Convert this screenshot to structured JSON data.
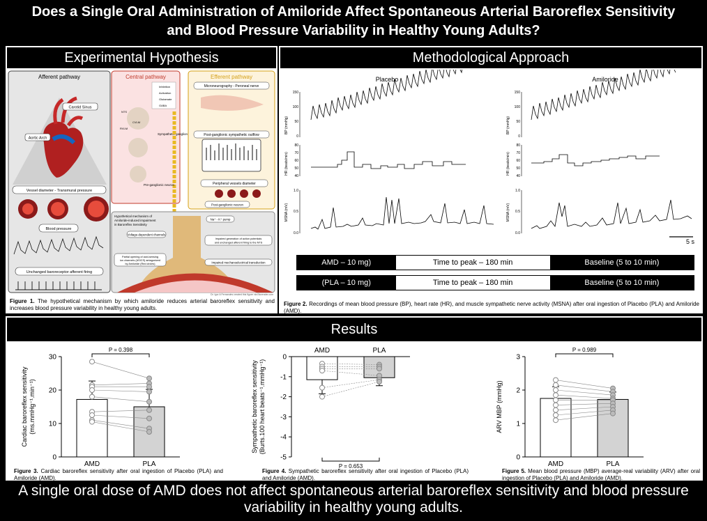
{
  "title": {
    "line1": "Does a Single Oral Administration of Amiloride Affect Spontaneous Arterial Baroreflex Sensitivity",
    "line2": "and Blood Pressure Variability in Healthy Young Adults?"
  },
  "hypothesis": {
    "header": "Experimental Hypothesis",
    "afferent_title": "Afferent pathway",
    "central_title": "Central pathway",
    "efferent_title": "Efferent pathway",
    "carotid_sinus": "Carotid Sinus",
    "aortic_arch": "Aortic Arch",
    "vessel_diameter": "Vessel diameter - Transmural pressure",
    "blood_pressure": "Blood pressure",
    "unchanged_firing": "Unchanged baroreceptor afferent firing",
    "legend": [
      "Inhibition",
      "Activation",
      "Glutamate",
      "GABA"
    ],
    "nts": "NTS",
    "cvlm": "CVLM",
    "rvlm": "RVLM",
    "sympathetic_ganglion": "Sympathetic ganglion",
    "preganglionic": "Pre-ganglionic neuron",
    "microneurography": "Microneurography - Peroneal nerve",
    "postganglionic_outflow": "Post-ganglionic sympathetic outflow",
    "peripheral_vessels": "Peripheral vessels diameter",
    "postganglionic_neuron": "Post-ganglionic neuron",
    "mechanism_title": "Hypothetical mechanism of Amiloride-induced impairment in Baroreflex Sensitivity",
    "voltage_channels": "Voltage-dependent channels",
    "pump": "Na⁺ - K⁺ pump",
    "partial_opening": "Partial opening of acid-sensing ion channels (ASICS) antagonized by Amiloride (Red circles)",
    "impaired_generation": "Impaired generation of action potentials and unchanged afferent firing to the NTS",
    "impaired_mechano": "Impaired mechanoelectrical transduction",
    "credit": "Dr. Igor A Fernandes created this figure via Biorender.com",
    "caption_bold": "Figure 1.",
    "caption_text": " The hypothetical mechanism by which amiloride reduces arterial baroreflex sensitivity and increases blood pressure variability in healthy young adults."
  },
  "methods": {
    "header": "Methodological Approach",
    "placebo": "Placebo",
    "amiloride": "Amiloride",
    "bp_label": "BP (mmHg)",
    "hr_label": "HR (beats/min)",
    "msna_label": "MSNA (mV)",
    "bp_ticks": [
      "150",
      "100",
      "50",
      "0"
    ],
    "hr_ticks": [
      "80",
      "70",
      "60",
      "50",
      "40"
    ],
    "msna_ticks": [
      "1.0",
      "0.5",
      "0.0"
    ],
    "scale_bar": "5 s",
    "protocol": [
      {
        "drug": "AMD – 10 mg)",
        "peak": "Time to peak – 180 min",
        "baseline": "Baseline (5 to 10 min)"
      },
      {
        "drug": "(PLA – 10 mg)",
        "peak": "Time to peak – 180 min",
        "baseline": "Baseline (5 to 10 min)"
      }
    ],
    "caption_bold": "Figure 2.",
    "caption_text": " Recordings of mean blood pressure (BP), heart rate (HR), and muscle sympathetic nerve activity (MSNA) after oral ingestion of Placebo (PLA) and Amiloride (AMD)."
  },
  "results": {
    "header": "Results",
    "fig3_caption_bold": "Figure 3.",
    "fig3_caption_text": " Cardiac baroreflex sensitivity after oral ingestion of Placebo (PLA) and Amiloride (AMD).",
    "fig4_caption_bold": "Figure 4.",
    "fig4_caption_text": " Sympathetic baroreflex sensitivity after oral ingestion of Placebo (PLA) and Amiloride (AMD).",
    "fig5_caption_bold": "Figure 5.",
    "fig5_caption_text": " Mean blood pressure (MBP) average-real variability (ARV) after oral ingestion of Placebo (PLA) and Amiloride (AMD)."
  },
  "conclusion": {
    "line1": "A single oral dose of AMD does not affect spontaneous arterial baroreflex sensitivity and blood pressure",
    "line2": "variability in healthy young adults."
  },
  "colors": {
    "amd_bar": "#ffffff",
    "pla_bar": "#d3d3d3",
    "central": "#c0392b",
    "efferent": "#d4a017"
  },
  "chart_data": [
    {
      "type": "bar",
      "title": "",
      "ylabel_line1": "Cardiac baroreflex sensitivity",
      "ylabel_line2": "(ms.mmHg⁻¹.min⁻¹)",
      "categories": [
        "AMD",
        "PLA"
      ],
      "values": [
        17.2,
        15.0
      ],
      "errors": [
        5.5,
        5.2
      ],
      "ylim": [
        0,
        30
      ],
      "yticks": [
        "0",
        "10",
        "20",
        "30"
      ],
      "annotation": "P = 0.398",
      "individual": [
        [
          28.5,
          21.5,
          21,
          20,
          18,
          13.5,
          12.5,
          11,
          10.5
        ],
        [
          23.5,
          22,
          21,
          19.5,
          16.5,
          14,
          11.5,
          8.5,
          7.5
        ]
      ]
    },
    {
      "type": "bar",
      "title": "",
      "ylabel_line1": "Sympathetic baroreflex sensitivity",
      "ylabel_line2": "(Burts.100 heart beats⁻¹.mmHg⁻¹)",
      "categories": [
        "AMD",
        "PLA"
      ],
      "values": [
        -1.15,
        -1.05
      ],
      "errors": [
        0.7,
        0.4
      ],
      "ylim": [
        -5,
        0
      ],
      "yticks": [
        "0",
        "-1",
        "-2",
        "-3",
        "-4",
        "-5"
      ],
      "annotation": "P = 0.653",
      "individual": [
        [
          -0.35,
          -0.5,
          -0.6,
          -0.7,
          -1.55,
          -2.0
        ],
        [
          -0.4,
          -0.5,
          -0.6,
          -0.95,
          -1.15,
          -1.25
        ]
      ]
    },
    {
      "type": "bar",
      "title": "",
      "ylabel_line1": "ARV MBP (mmHg)",
      "ylabel_line2": "",
      "categories": [
        "AMD",
        "PLA"
      ],
      "values": [
        1.75,
        1.72
      ],
      "errors": [
        0.35,
        0.22
      ],
      "ylim": [
        0,
        3
      ],
      "yticks": [
        "0",
        "1",
        "2",
        "3"
      ],
      "annotation": "P = 0.989",
      "individual": [
        [
          2.3,
          2.15,
          2.0,
          1.85,
          1.7,
          1.55,
          1.4,
          1.25,
          1.1
        ],
        [
          2.05,
          1.95,
          1.85,
          1.75,
          1.7,
          1.6,
          1.5,
          1.4,
          1.3
        ]
      ]
    }
  ]
}
